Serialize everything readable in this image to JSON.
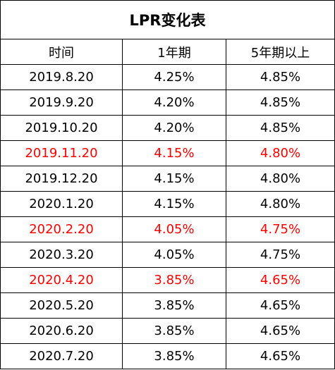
{
  "title": "LPR变化表",
  "columns": [
    "时间",
    "1年期",
    "5年期以上"
  ],
  "highlight_color": "#ff0000",
  "rows": [
    {
      "date": "2019.8.20",
      "one_year": "4.25%",
      "five_year": "4.85%",
      "highlight": false
    },
    {
      "date": "2019.9.20",
      "one_year": "4.20%",
      "five_year": "4.85%",
      "highlight": false
    },
    {
      "date": "2019.10.20",
      "one_year": "4.20%",
      "five_year": "4.85%",
      "highlight": false
    },
    {
      "date": "2019.11.20",
      "one_year": "4.15%",
      "five_year": "4.80%",
      "highlight": true
    },
    {
      "date": "2019.12.20",
      "one_year": "4.15%",
      "five_year": "4.80%",
      "highlight": false
    },
    {
      "date": "2020.1.20",
      "one_year": "4.15%",
      "five_year": "4.80%",
      "highlight": false
    },
    {
      "date": "2020.2.20",
      "one_year": "4.05%",
      "five_year": "4.75%",
      "highlight": true
    },
    {
      "date": "2020.3.20",
      "one_year": "4.05%",
      "five_year": "4.75%",
      "highlight": false
    },
    {
      "date": "2020.4.20",
      "one_year": "3.85%",
      "five_year": "4.65%",
      "highlight": true
    },
    {
      "date": "2020.5.20",
      "one_year": "3.85%",
      "five_year": "4.65%",
      "highlight": false
    },
    {
      "date": "2020.6.20",
      "one_year": "3.85%",
      "five_year": "4.65%",
      "highlight": false
    },
    {
      "date": "2020.7.20",
      "one_year": "3.85%",
      "five_year": "4.65%",
      "highlight": false
    }
  ]
}
